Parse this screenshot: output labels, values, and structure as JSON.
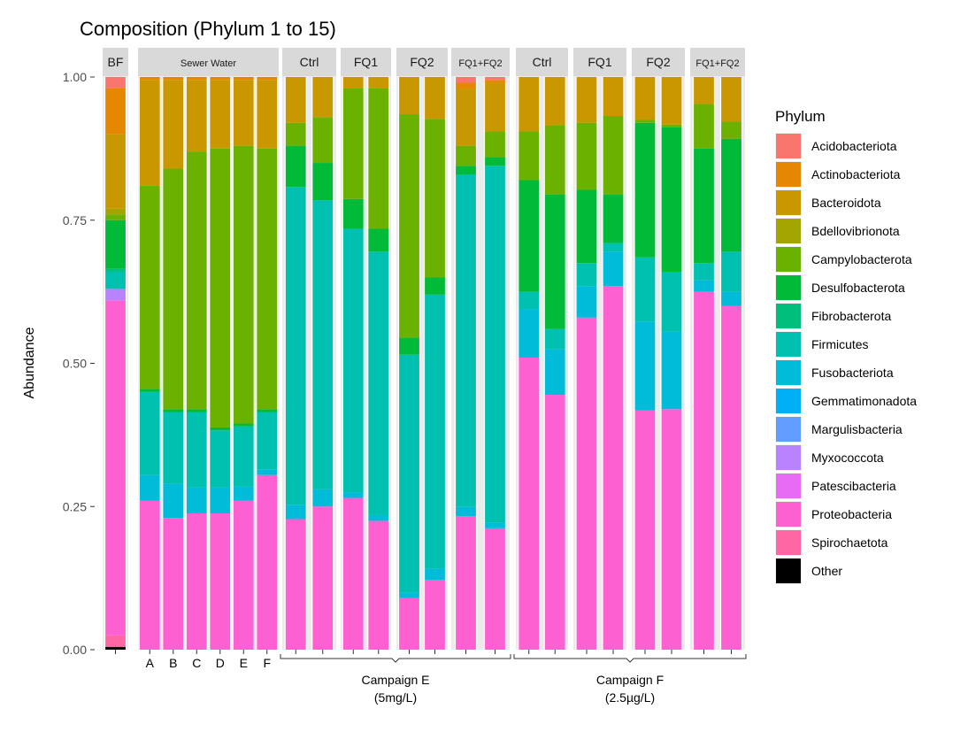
{
  "chart_data": {
    "type": "bar",
    "stacked": true,
    "faceted": true,
    "title": "Composition (Phylum 1 to 15)",
    "ylabel": "Abundance",
    "ylim": [
      0,
      1
    ],
    "yticks": [
      "0.00",
      "0.25",
      "0.50",
      "0.75",
      "1.00"
    ],
    "legend": {
      "title": "Phylum",
      "position": "right",
      "entries": [
        {
          "name": "Acidobacteriota",
          "color": "#F8766D"
        },
        {
          "name": "Actinobacteriota",
          "color": "#E58700"
        },
        {
          "name": "Bacteroidota",
          "color": "#C99800"
        },
        {
          "name": "Bdellovibrionota",
          "color": "#A3A500"
        },
        {
          "name": "Campylobacterota",
          "color": "#6BB100"
        },
        {
          "name": "Desulfobacterota",
          "color": "#00BA38"
        },
        {
          "name": "Fibrobacterota",
          "color": "#00BF7D"
        },
        {
          "name": "Firmicutes",
          "color": "#00C0AF"
        },
        {
          "name": "Fusobacteriota",
          "color": "#00BCD8"
        },
        {
          "name": "Gemmatimonadota",
          "color": "#00B0F6"
        },
        {
          "name": "Margulisbacteria",
          "color": "#619CFF"
        },
        {
          "name": "Myxococcota",
          "color": "#B983FF"
        },
        {
          "name": "Patescibacteria",
          "color": "#E76BF3"
        },
        {
          "name": "Proteobacteria",
          "color": "#FD61D1"
        },
        {
          "name": "Spirochaetota",
          "color": "#FF67A4"
        },
        {
          "name": "Other",
          "color": "#000000"
        }
      ]
    },
    "facets": [
      {
        "label": "BF",
        "samples": [
          {
            "label": "",
            "values": {
              "Other": 0.005,
              "Spirochaetota": 0.02,
              "Proteobacteria": 0.585,
              "Myxococcota": 0.02,
              "Firmicutes": 0.03,
              "Desulfobacterota": 0.085,
              "Fibrobacterota": 0.005,
              "Campylobacterota": 0.01,
              "Bdellovibrionota": 0.01,
              "Bacteroidota": 0.13,
              "Actinobacteriota": 0.08,
              "Acidobacteriota": 0.02
            }
          }
        ]
      },
      {
        "label": "Sewer Water",
        "samples": [
          {
            "label": "A",
            "values": {
              "Proteobacteria": 0.26,
              "Fusobacteriota": 0.045,
              "Firmicutes": 0.145,
              "Desulfobacterota": 0.005,
              "Campylobacterota": 0.355,
              "Bacteroidota": 0.185,
              "Actinobacteriota": 0.005
            }
          },
          {
            "label": "B",
            "values": {
              "Proteobacteria": 0.23,
              "Fusobacteriota": 0.06,
              "Firmicutes": 0.125,
              "Desulfobacterota": 0.005,
              "Campylobacterota": 0.42,
              "Bacteroidota": 0.155,
              "Actinobacteriota": 0.005
            }
          },
          {
            "label": "C",
            "values": {
              "Proteobacteria": 0.238,
              "Fusobacteriota": 0.045,
              "Firmicutes": 0.132,
              "Desulfobacterota": 0.005,
              "Campylobacterota": 0.45,
              "Bacteroidota": 0.125,
              "Actinobacteriota": 0.005
            }
          },
          {
            "label": "D",
            "values": {
              "Proteobacteria": 0.238,
              "Fusobacteriota": 0.045,
              "Firmicutes": 0.1,
              "Desulfobacterota": 0.005,
              "Campylobacterota": 0.487,
              "Bacteroidota": 0.12,
              "Actinobacteriota": 0.005
            }
          },
          {
            "label": "E",
            "values": {
              "Proteobacteria": 0.26,
              "Fusobacteriota": 0.025,
              "Firmicutes": 0.105,
              "Desulfobacterota": 0.005,
              "Campylobacterota": 0.485,
              "Bacteroidota": 0.115,
              "Actinobacteriota": 0.005
            }
          },
          {
            "label": "F",
            "values": {
              "Proteobacteria": 0.305,
              "Fusobacteriota": 0.01,
              "Firmicutes": 0.1,
              "Desulfobacterota": 0.005,
              "Campylobacterota": 0.455,
              "Bacteroidota": 0.12,
              "Actinobacteriota": 0.005
            }
          }
        ]
      },
      {
        "label": "Ctrl",
        "samples": [
          {
            "label": "",
            "values": {
              "Proteobacteria": 0.228,
              "Fusobacteriota": 0.025,
              "Firmicutes": 0.555,
              "Desulfobacterota": 0.072,
              "Campylobacterota": 0.04,
              "Bacteroidota": 0.08
            }
          },
          {
            "label": "",
            "values": {
              "Proteobacteria": 0.25,
              "Fusobacteriota": 0.03,
              "Firmicutes": 0.505,
              "Desulfobacterota": 0.065,
              "Campylobacterota": 0.08,
              "Bacteroidota": 0.07
            }
          }
        ]
      },
      {
        "label": "FQ1",
        "samples": [
          {
            "label": "",
            "values": {
              "Proteobacteria": 0.265,
              "Fusobacteriota": 0.01,
              "Firmicutes": 0.46,
              "Desulfobacterota": 0.052,
              "Campylobacterota": 0.193,
              "Bacteroidota": 0.02
            }
          },
          {
            "label": "",
            "values": {
              "Proteobacteria": 0.225,
              "Fusobacteriota": 0.01,
              "Firmicutes": 0.46,
              "Desulfobacterota": 0.04,
              "Campylobacterota": 0.245,
              "Bacteroidota": 0.02
            }
          }
        ]
      },
      {
        "label": "FQ2",
        "samples": [
          {
            "label": "",
            "values": {
              "Proteobacteria": 0.09,
              "Fusobacteriota": 0.01,
              "Firmicutes": 0.415,
              "Desulfobacterota": 0.03,
              "Campylobacterota": 0.39,
              "Bacteroidota": 0.065
            }
          },
          {
            "label": "",
            "values": {
              "Proteobacteria": 0.122,
              "Fusobacteriota": 0.02,
              "Firmicutes": 0.478,
              "Desulfobacterota": 0.03,
              "Campylobacterota": 0.277,
              "Bacteroidota": 0.073
            }
          }
        ]
      },
      {
        "label": "FQ1+FQ2",
        "samples": [
          {
            "label": "",
            "values": {
              "Proteobacteria": 0.233,
              "Fusobacteriota": 0.017,
              "Firmicutes": 0.58,
              "Desulfobacterota": 0.015,
              "Campylobacterota": 0.035,
              "Bacteroidota": 0.1,
              "Actinobacteriota": 0.01,
              "Acidobacteriota": 0.01
            }
          },
          {
            "label": "",
            "values": {
              "Proteobacteria": 0.212,
              "Fusobacteriota": 0.01,
              "Firmicutes": 0.623,
              "Desulfobacterota": 0.015,
              "Campylobacterota": 0.045,
              "Bacteroidota": 0.085,
              "Actinobacteriota": 0.005,
              "Acidobacteriota": 0.005
            }
          }
        ]
      },
      {
        "label": "Ctrl",
        "samples": [
          {
            "label": "",
            "values": {
              "Proteobacteria": 0.51,
              "Fusobacteriota": 0.085,
              "Firmicutes": 0.03,
              "Desulfobacterota": 0.195,
              "Campylobacterota": 0.085,
              "Bacteroidota": 0.095
            }
          },
          {
            "label": "",
            "values": {
              "Proteobacteria": 0.445,
              "Fusobacteriota": 0.08,
              "Firmicutes": 0.035,
              "Desulfobacterota": 0.235,
              "Campylobacterota": 0.12,
              "Bacteroidota": 0.085
            }
          }
        ]
      },
      {
        "label": "FQ1",
        "samples": [
          {
            "label": "",
            "values": {
              "Proteobacteria": 0.58,
              "Fusobacteriota": 0.055,
              "Firmicutes": 0.04,
              "Desulfobacterota": 0.128,
              "Campylobacterota": 0.117,
              "Bacteroidota": 0.08
            }
          },
          {
            "label": "",
            "values": {
              "Proteobacteria": 0.635,
              "Fusobacteriota": 0.06,
              "Firmicutes": 0.015,
              "Desulfobacterota": 0.085,
              "Campylobacterota": 0.137,
              "Bacteroidota": 0.068
            }
          }
        ]
      },
      {
        "label": "FQ2",
        "samples": [
          {
            "label": "",
            "values": {
              "Proteobacteria": 0.418,
              "Fusobacteriota": 0.155,
              "Firmicutes": 0.112,
              "Desulfobacterota": 0.235,
              "Campylobacterota": 0.005,
              "Bacteroidota": 0.075
            }
          },
          {
            "label": "",
            "values": {
              "Proteobacteria": 0.42,
              "Fusobacteriota": 0.135,
              "Firmicutes": 0.105,
              "Desulfobacterota": 0.252,
              "Campylobacterota": 0.005,
              "Bacteroidota": 0.083
            }
          }
        ]
      },
      {
        "label": "FQ1+FQ2",
        "samples": [
          {
            "label": "",
            "values": {
              "Proteobacteria": 0.625,
              "Fusobacteriota": 0.02,
              "Firmicutes": 0.03,
              "Desulfobacterota": 0.2,
              "Campylobacterota": 0.078,
              "Bacteroidota": 0.047
            }
          },
          {
            "label": "",
            "values": {
              "Proteobacteria": 0.6,
              "Fusobacteriota": 0.025,
              "Firmicutes": 0.07,
              "Desulfobacterota": 0.197,
              "Campylobacterota": 0.03,
              "Bacteroidota": 0.078
            }
          }
        ]
      }
    ],
    "campaigns": [
      {
        "label": "Campaign E",
        "sublabel": "(5mg/L)",
        "facets": [
          2,
          3,
          4,
          5
        ]
      },
      {
        "label": "Campaign F",
        "sublabel": "(2.5µg/L)",
        "facets": [
          6,
          7,
          8,
          9
        ]
      }
    ]
  }
}
